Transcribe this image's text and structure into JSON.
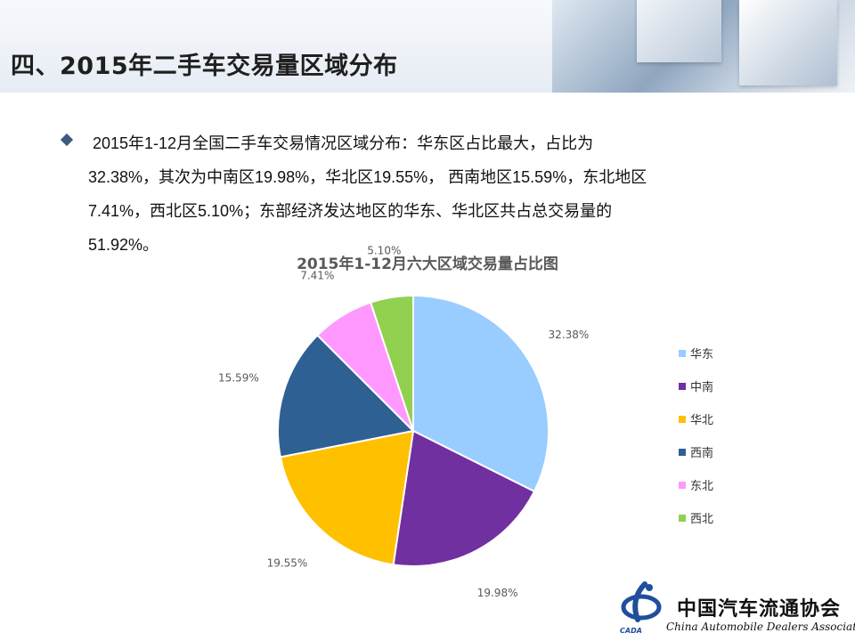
{
  "header": {
    "title": "四、2015年二手车交易量区域分布"
  },
  "bullet": {
    "lines": [
      "2015年1-12月全国二手车交易情况区域分布：华东区占比最大，占比为",
      "32.38%，其次为中南区19.98%，华北区19.55%， 西南地区15.59%，东北地区",
      "7.41%，西北区5.10%；东部经济发达地区的华东、华北区共占总交易量的",
      "51.92%。"
    ]
  },
  "chart_data": {
    "type": "pie",
    "title": "2015年1-12月六大区域交易量占比图",
    "categories": [
      "华东",
      "中南",
      "华北",
      "西南",
      "东北",
      "西北"
    ],
    "values": [
      32.38,
      19.98,
      19.55,
      15.59,
      7.41,
      5.1
    ],
    "labels": [
      "32.38%",
      "19.98%",
      "19.55%",
      "15.59%",
      "7.41%",
      "5.10%"
    ],
    "colors": [
      "#99ccff",
      "#7030a0",
      "#ffc000",
      "#2e6094",
      "#ff99ff",
      "#92d050"
    ],
    "legend_position": "right",
    "start": "12 o'clock",
    "direction": "clockwise"
  },
  "footer": {
    "org_cn": "中国汽车流通协会",
    "org_en": "China Automobile Dealers Association",
    "abbr": "CADA"
  }
}
